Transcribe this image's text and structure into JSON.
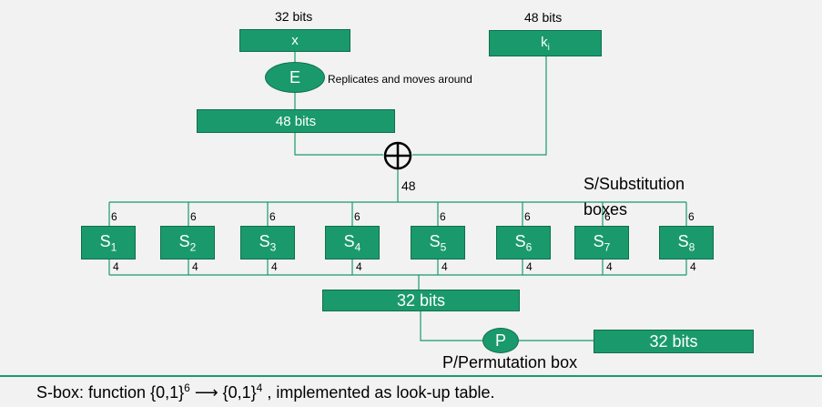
{
  "input_bits_label": "32 bits",
  "x_box": "x",
  "key_bits_label": "48 bits",
  "key_box": {
    "base": "k",
    "sub": "i"
  },
  "expansion": {
    "label": "E",
    "note": "Replicates and moves around"
  },
  "expanded_box": "48 bits",
  "xor_symbol": "⨁",
  "xor_output_label": "48",
  "sboxes_title": "S/Substitution boxes",
  "sboxes": [
    {
      "base": "S",
      "sub": "1",
      "in": "6",
      "out": "4"
    },
    {
      "base": "S",
      "sub": "2",
      "in": "6",
      "out": "4"
    },
    {
      "base": "S",
      "sub": "3",
      "in": "6",
      "out": "4"
    },
    {
      "base": "S",
      "sub": "4",
      "in": "6",
      "out": "4"
    },
    {
      "base": "S",
      "sub": "5",
      "in": "6",
      "out": "4"
    },
    {
      "base": "S",
      "sub": "6",
      "in": "6",
      "out": "4"
    },
    {
      "base": "S",
      "sub": "7",
      "in": "6",
      "out": "4"
    },
    {
      "base": "S",
      "sub": "8",
      "in": "6",
      "out": "4"
    }
  ],
  "combined_box": "32 bits",
  "permutation": {
    "label": "P",
    "title": "P/Permutation box"
  },
  "output_box": "32 bits",
  "footer": {
    "prefix": "S-box:  function {0,1}",
    "exp1": "6",
    "arrow": " ⟶ {0,1}",
    "exp2": "4",
    "suffix": " ,  implemented as look-up table."
  },
  "colors": {
    "box": "#1a9a6c",
    "border": "#0f6f4c",
    "line": "#1a9a6c",
    "background": "#f2f2f2"
  }
}
